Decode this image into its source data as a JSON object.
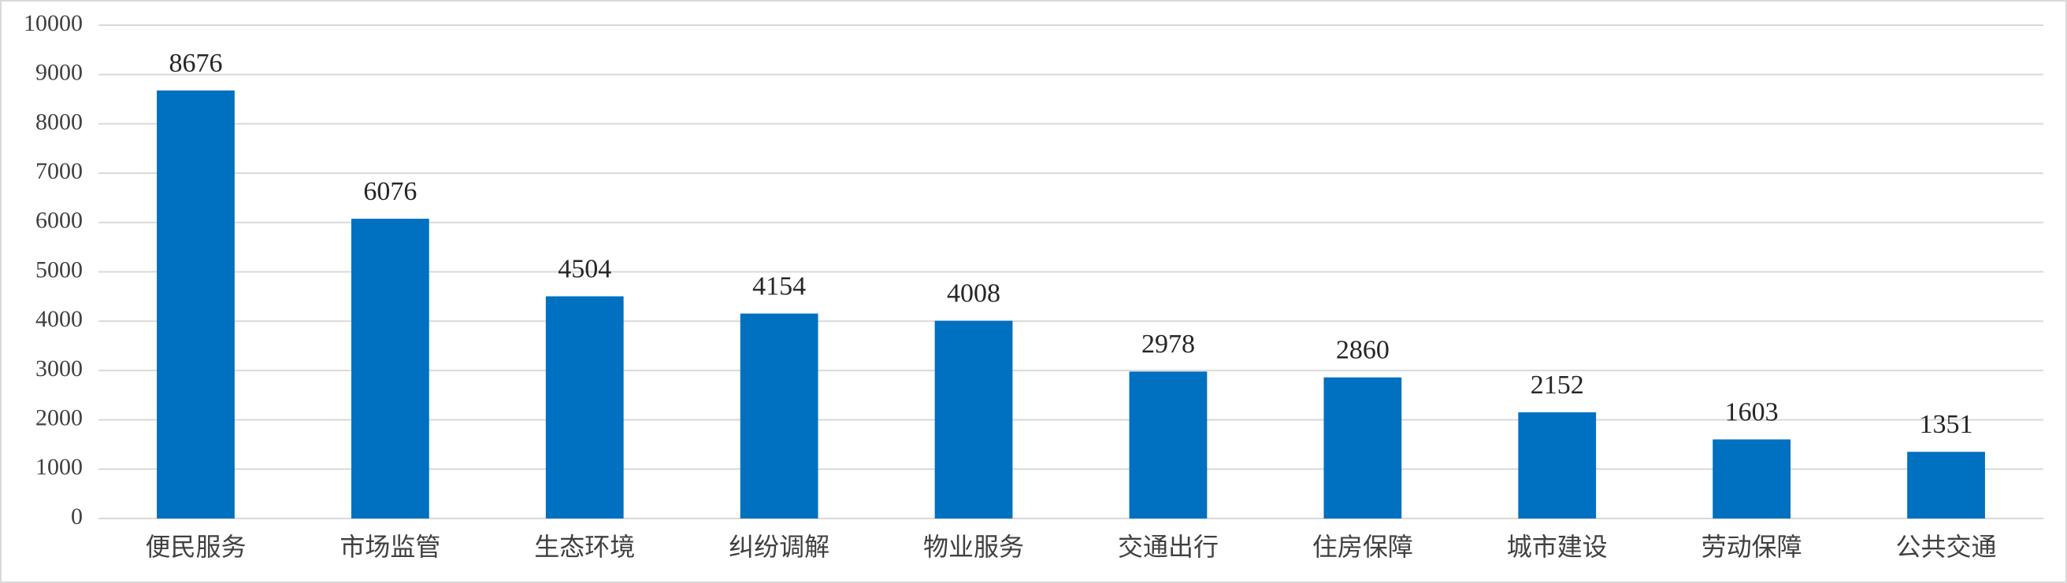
{
  "chart_data": {
    "type": "bar",
    "categories": [
      "便民服务",
      "市场监管",
      "生态环境",
      "纠纷调解",
      "物业服务",
      "交通出行",
      "住房保障",
      "城市建设",
      "劳动保障",
      "公共交通"
    ],
    "values": [
      8676,
      6076,
      4504,
      4154,
      4008,
      2978,
      2860,
      2152,
      1603,
      1351
    ],
    "color": "#0070c0",
    "ylim": [
      0,
      10000
    ],
    "yticks": [
      0,
      1000,
      2000,
      3000,
      4000,
      5000,
      6000,
      7000,
      8000,
      9000,
      10000
    ],
    "grid": true
  }
}
